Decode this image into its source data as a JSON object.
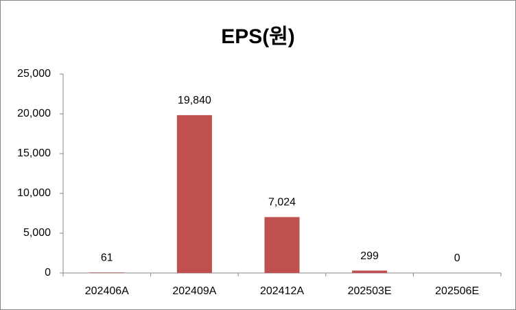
{
  "chart_data": {
    "type": "bar",
    "title": "EPS(원)",
    "categories": [
      "202406A",
      "202409A",
      "202412A",
      "202503E",
      "202506E"
    ],
    "values": [
      61,
      19840,
      7024,
      299,
      0
    ],
    "value_labels": [
      "61",
      "19,840",
      "7,024",
      "299",
      "0"
    ],
    "color": "#c0504d",
    "ylim": [
      0,
      25000
    ],
    "yticks": [
      0,
      {
        "value": 5000,
        "label": "5,000"
      },
      {
        "value": 10000,
        "label": "10,000"
      },
      {
        "value": 15000,
        "label": "15,000"
      },
      {
        "value": 20000,
        "label": "20,000"
      },
      {
        "value": 25000,
        "label": "25,000"
      }
    ],
    "grid": false
  }
}
